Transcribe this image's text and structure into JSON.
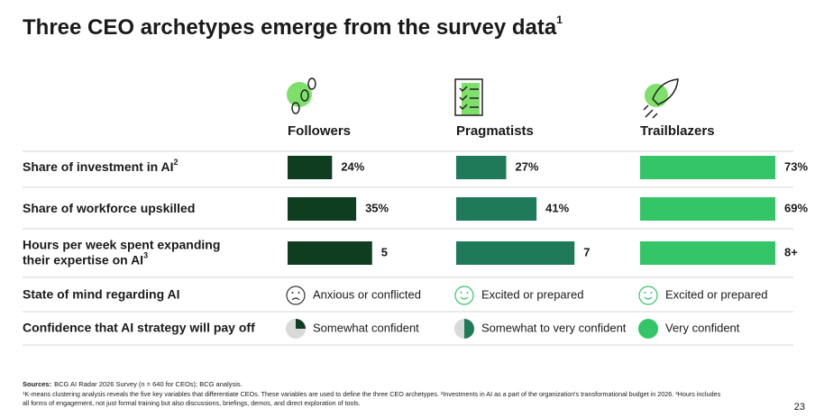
{
  "title": "Three CEO archetypes emerge from the survey data",
  "title_sup": "1",
  "columns": [
    "Followers",
    "Pragmatists",
    "Trailblazers"
  ],
  "colors": [
    "#0f3d20",
    "#1f7a5a",
    "#34c566"
  ],
  "bar_rows": [
    {
      "label": [
        "Share of investment in AI"
      ],
      "sup": "2",
      "values": [
        24,
        27,
        73
      ],
      "value_labels": [
        "24%",
        "27%",
        "73%"
      ]
    },
    {
      "label": [
        "Share of workforce upskilled"
      ],
      "values": [
        35,
        41,
        69
      ],
      "value_labels": [
        "35%",
        "41%",
        "69%"
      ]
    },
    {
      "label": [
        "Hours per week spent expanding",
        "their expertise on AI"
      ],
      "sup": "3",
      "values": [
        5,
        7,
        8
      ],
      "value_labels": [
        "5",
        "7",
        "8+"
      ]
    }
  ],
  "text_rows": [
    {
      "label": "State of mind regarding AI",
      "items": [
        "Anxious or conflicted",
        "Excited or prepared",
        "Excited or prepared"
      ]
    },
    {
      "label": "Confidence that AI strategy will pay off",
      "items": [
        "Somewhat confident",
        "Somewhat to very confident",
        "Very confident"
      ]
    }
  ],
  "sources_label": "Sources:",
  "sources": "BCG AI Radar 2026 Survey (n = 640 for CEOs); BCG analysis.",
  "footnotes": [
    "¹K-means clustering analysis reveals the five key variables that differentiate CEOs. These variables are used to define the three CEO archetypes. ²Investments in AI as a part of the organization's transformational budget in 2026. ³Hours includes",
    "all forms of engagement, not just formal training but also discussions, briefings, demos, and direct exploration of tools."
  ],
  "page_number": "23"
}
